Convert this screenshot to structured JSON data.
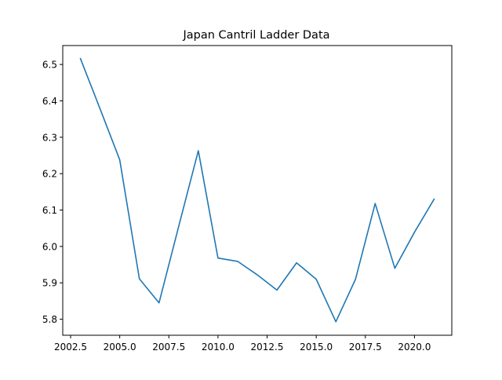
{
  "chart_data": {
    "type": "line",
    "title": "Japan Cantril Ladder Data",
    "xlabel": "",
    "ylabel": "",
    "xlim": [
      2002.1,
      2021.9
    ],
    "ylim": [
      5.756,
      6.552
    ],
    "x_ticks": [
      2002.5,
      2005.0,
      2007.5,
      2010.0,
      2012.5,
      2015.0,
      2017.5,
      2020.0
    ],
    "x_tick_labels": [
      "2002.5",
      "2005.0",
      "2007.5",
      "2010.0",
      "2012.5",
      "2015.0",
      "2017.5",
      "2020.0"
    ],
    "y_ticks": [
      5.8,
      5.9,
      6.0,
      6.1,
      6.2,
      6.3,
      6.4,
      6.5
    ],
    "y_tick_labels": [
      "5.8",
      "5.9",
      "6.0",
      "6.1",
      "6.2",
      "6.3",
      "6.4",
      "6.5"
    ],
    "grid": false,
    "series": [
      {
        "color": "#1f77b4",
        "x": [
          2003,
          2004,
          2005,
          2006,
          2007,
          2008,
          2009,
          2010,
          2011,
          2012,
          2013,
          2014,
          2015,
          2016,
          2017,
          2018,
          2019,
          2020,
          2021
        ],
        "y": [
          6.516,
          6.378,
          6.238,
          5.911,
          5.845,
          6.055,
          6.263,
          5.968,
          5.959,
          5.922,
          5.88,
          5.955,
          5.91,
          5.793,
          5.91,
          6.118,
          5.94,
          6.039,
          6.13
        ]
      }
    ]
  }
}
